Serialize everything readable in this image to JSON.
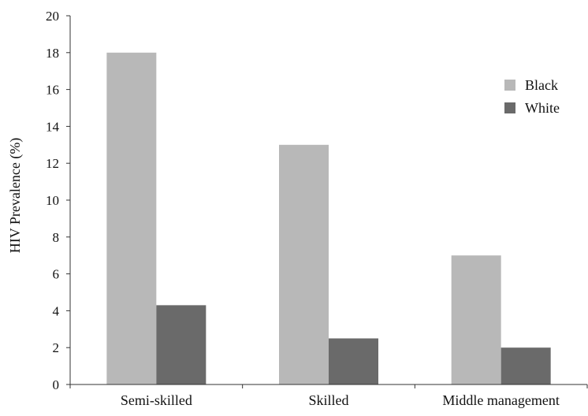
{
  "chart_data": {
    "type": "bar",
    "title": "",
    "xlabel": "",
    "ylabel": "HIV Prevalence (%)",
    "ylim": [
      0,
      20
    ],
    "yticks": [
      0,
      2,
      4,
      6,
      8,
      10,
      12,
      14,
      16,
      18,
      20
    ],
    "categories": [
      "Semi-skilled",
      "Skilled",
      "Middle management"
    ],
    "series": [
      {
        "name": "Black",
        "values": [
          18,
          13,
          7
        ],
        "color": "#b8b8b8"
      },
      {
        "name": "White",
        "values": [
          4.3,
          2.5,
          2
        ],
        "color": "#6a6a6a"
      }
    ],
    "grid": false,
    "legend_position": "top-right"
  }
}
